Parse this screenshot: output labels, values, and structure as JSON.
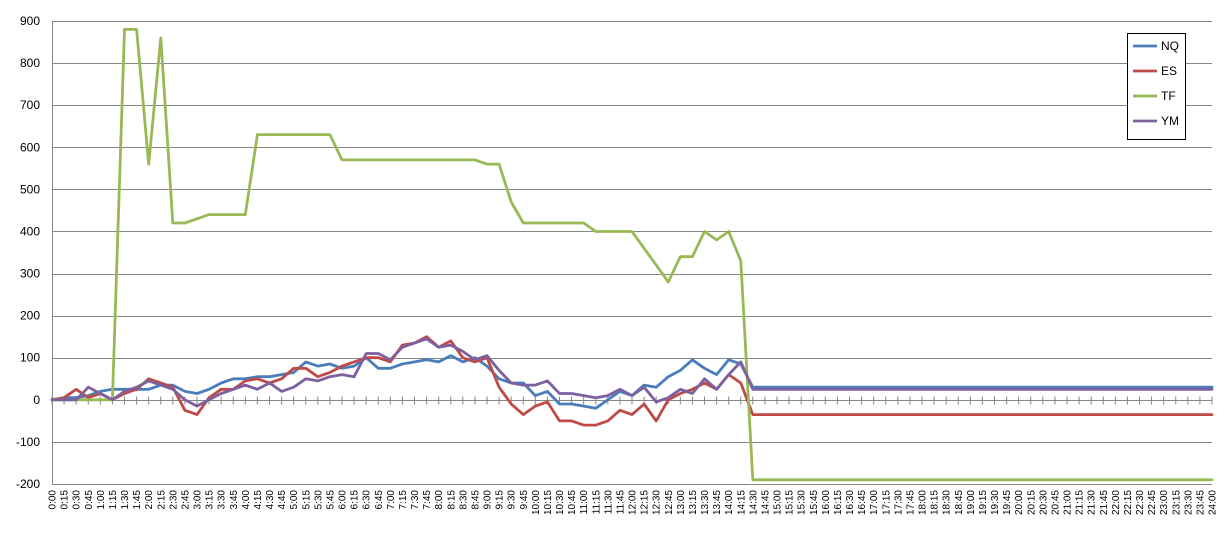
{
  "chart_data": {
    "type": "line",
    "title": "",
    "xlabel": "",
    "ylabel": "",
    "ylim": [
      -200,
      900
    ],
    "yticks": [
      900,
      800,
      700,
      600,
      500,
      400,
      300,
      200,
      100,
      0,
      -100,
      -200
    ],
    "grid": "horizontal",
    "legend_placement": "top-right",
    "x": [
      "0:00",
      "0:15",
      "0:30",
      "0:45",
      "1:00",
      "1:15",
      "1:30",
      "1:45",
      "2:00",
      "2:15",
      "2:30",
      "2:45",
      "3:00",
      "3:15",
      "3:30",
      "3:45",
      "4:00",
      "4:15",
      "4:30",
      "4:45",
      "5:00",
      "5:15",
      "5:30",
      "5:45",
      "6:00",
      "6:15",
      "6:30",
      "6:45",
      "7:00",
      "7:15",
      "7:30",
      "7:45",
      "8:00",
      "8:15",
      "8:30",
      "8:45",
      "9:00",
      "9:15",
      "9:30",
      "9:45",
      "10:00",
      "10:15",
      "10:30",
      "10:45",
      "11:00",
      "11:15",
      "11:30",
      "11:45",
      "12:00",
      "12:15",
      "12:30",
      "12:45",
      "13:00",
      "13:15",
      "13:30",
      "13:45",
      "14:00",
      "14:15",
      "14:30",
      "14:45",
      "15:00",
      "15:15",
      "15:30",
      "15:45",
      "16:00",
      "16:15",
      "16:30",
      "16:45",
      "17:00",
      "17:15",
      "17:30",
      "17:45",
      "18:00",
      "18:15",
      "18:30",
      "18:45",
      "19:00",
      "19:15",
      "19:30",
      "19:45",
      "20:00",
      "20:15",
      "20:30",
      "20:45",
      "21:00",
      "21:15",
      "21:30",
      "21:45",
      "22:00",
      "22:15",
      "22:30",
      "22:45",
      "23:00",
      "23:15",
      "23:30",
      "23:45",
      "24:00"
    ],
    "series": [
      {
        "name": "NQ",
        "color": "#4a7ebb",
        "values": [
          0,
          5,
          5,
          10,
          20,
          25,
          25,
          25,
          25,
          35,
          35,
          20,
          15,
          25,
          40,
          50,
          50,
          55,
          55,
          60,
          65,
          90,
          80,
          85,
          75,
          80,
          100,
          75,
          75,
          85,
          90,
          95,
          90,
          105,
          90,
          100,
          80,
          50,
          40,
          40,
          10,
          20,
          -10,
          -10,
          -15,
          -20,
          0,
          20,
          10,
          35,
          30,
          55,
          70,
          95,
          75,
          60,
          95,
          85,
          30,
          30,
          30,
          30,
          30,
          30,
          30,
          30,
          30,
          30,
          30,
          30,
          30,
          30,
          30,
          30,
          30,
          30,
          30,
          30,
          30,
          30,
          30,
          30,
          30,
          30,
          30,
          30,
          30,
          30,
          30,
          30,
          30,
          30,
          30,
          30,
          30,
          30,
          30
        ]
      },
      {
        "name": "ES",
        "color": "#be4b48",
        "values": [
          0,
          5,
          25,
          5,
          15,
          0,
          15,
          25,
          50,
          40,
          30,
          -25,
          -35,
          5,
          25,
          25,
          45,
          50,
          40,
          50,
          75,
          75,
          55,
          65,
          80,
          90,
          100,
          100,
          90,
          130,
          135,
          150,
          125,
          140,
          100,
          90,
          100,
          30,
          -10,
          -35,
          -15,
          -5,
          -50,
          -50,
          -60,
          -60,
          -50,
          -25,
          -35,
          -10,
          -50,
          0,
          15,
          25,
          40,
          25,
          60,
          40,
          -35,
          -35,
          -35,
          -35,
          -35,
          -35,
          -35,
          -35,
          -35,
          -35,
          -35,
          -35,
          -35,
          -35,
          -35,
          -35,
          -35,
          -35,
          -35,
          -35,
          -35,
          -35,
          -35,
          -35,
          -35,
          -35,
          -35,
          -35,
          -35,
          -35,
          -35,
          -35,
          -35,
          -35,
          -35,
          -35,
          -35,
          -35,
          -35
        ]
      },
      {
        "name": "TF",
        "color": "#98b954",
        "values": [
          0,
          0,
          0,
          0,
          0,
          0,
          880,
          880,
          560,
          860,
          420,
          420,
          430,
          440,
          440,
          440,
          440,
          630,
          630,
          630,
          630,
          630,
          630,
          630,
          570,
          570,
          570,
          570,
          570,
          570,
          570,
          570,
          570,
          570,
          570,
          570,
          560,
          560,
          470,
          420,
          420,
          420,
          420,
          420,
          420,
          400,
          400,
          400,
          400,
          360,
          320,
          280,
          340,
          340,
          400,
          380,
          400,
          330,
          -190,
          -190,
          -190,
          -190,
          -190,
          -190,
          -190,
          -190,
          -190,
          -190,
          -190,
          -190,
          -190,
          -190,
          -190,
          -190,
          -190,
          -190,
          -190,
          -190,
          -190,
          -190,
          -190,
          -190,
          -190,
          -190,
          -190,
          -190,
          -190,
          -190,
          -190,
          -190,
          -190,
          -190,
          -190,
          -190,
          -190,
          -190,
          -190
        ]
      },
      {
        "name": "YM",
        "color": "#7d60a0",
        "values": [
          0,
          0,
          0,
          30,
          15,
          0,
          20,
          30,
          45,
          35,
          25,
          0,
          -15,
          0,
          15,
          25,
          35,
          25,
          40,
          20,
          30,
          50,
          45,
          55,
          60,
          55,
          110,
          110,
          95,
          125,
          135,
          145,
          125,
          130,
          115,
          95,
          105,
          70,
          40,
          35,
          35,
          45,
          15,
          15,
          10,
          5,
          10,
          25,
          10,
          30,
          -5,
          5,
          25,
          15,
          50,
          25,
          60,
          90,
          25,
          25,
          25,
          25,
          25,
          25,
          25,
          25,
          25,
          25,
          25,
          25,
          25,
          25,
          25,
          25,
          25,
          25,
          25,
          25,
          25,
          25,
          25,
          25,
          25,
          25,
          25,
          25,
          25,
          25,
          25,
          25,
          25,
          25,
          25,
          25,
          25,
          25,
          25
        ]
      }
    ]
  }
}
